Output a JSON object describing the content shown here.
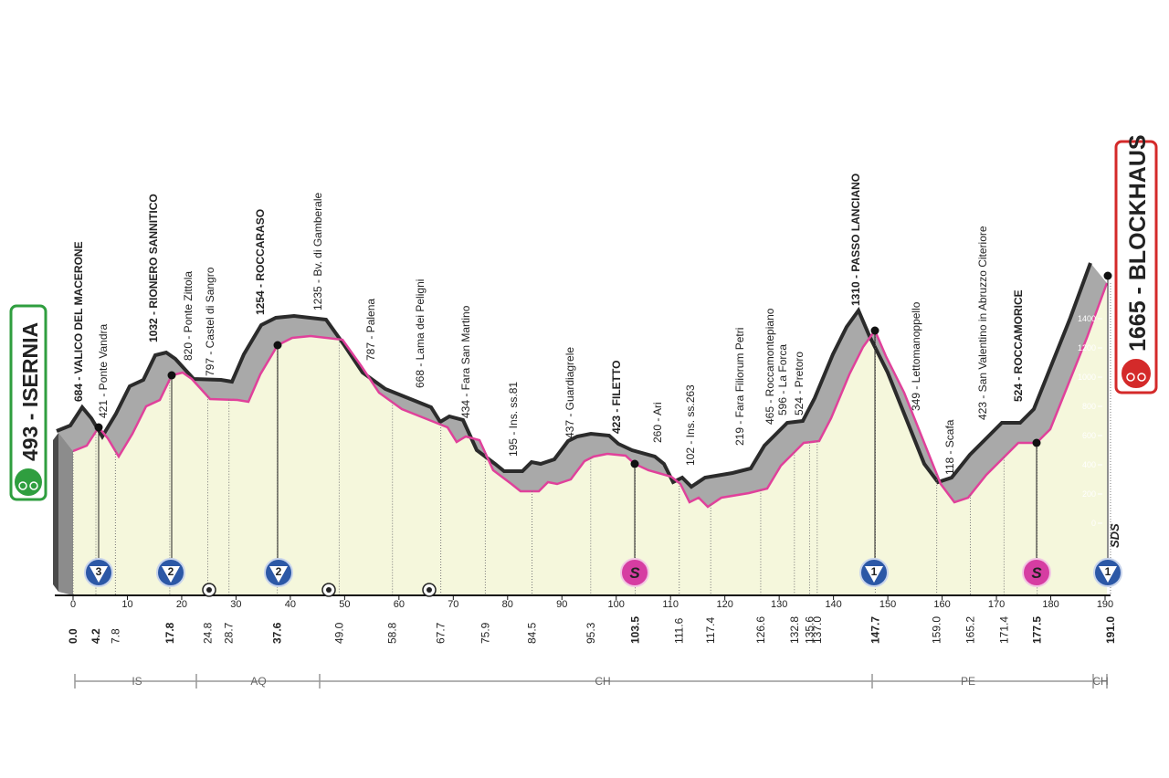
{
  "profile": {
    "start_label": "493 - ISERNIA",
    "finish_label": "1665 - BLOCKHAUS",
    "waypoints": [
      "684 - VALICO DEL MACERONE",
      "421 - Ponte Vandra",
      "1032 - RIONERO SANNITICO",
      "820 - Ponte Zittola",
      "797 - Castel di Sangro",
      "1254 - ROCCARASO",
      "1235 - Bv. di Gamberale",
      "787 - Palena",
      "668 - Lama dei Peligni",
      "434 - Fara San Martino",
      "195 - Ins. ss.81",
      "437 - Guardiagrele",
      "423 - FILETTO",
      "260 - Ari",
      "102 - Ins. ss.263",
      "219 - Fara Filiorum Petri",
      "465 - Roccamontepiano",
      "596 - La Forca",
      "524 - Pretoro",
      "1310 - PASSO LANCIANO",
      "349 - Lettomanoppello",
      "118 - Scafa",
      "423 - San Valentino in Abruzzo Citeriore",
      "524 - ROCCAMORICE"
    ],
    "km_points": [
      {
        "value": 0,
        "label": "0.0"
      },
      4.2,
      7.8,
      17.8,
      24.8,
      28.7,
      37.6,
      {
        "value": 49,
        "label": "49.0"
      },
      58.8,
      67.7,
      75.9,
      84.5,
      95.3,
      103.5,
      111.6,
      117.4,
      126.6,
      132.8,
      135.6,
      {
        "value": 137,
        "label": "137.0"
      },
      147.7,
      {
        "value": 159,
        "label": "159.0"
      },
      165.2,
      171.4,
      177.5,
      {
        "value": 191,
        "label": "191.0"
      }
    ],
    "distance_ticks": [
      0,
      10,
      20,
      30,
      40,
      50,
      60,
      70,
      80,
      90,
      100,
      110,
      120,
      130,
      140,
      150,
      160,
      170,
      180,
      190
    ],
    "altitude_ticks": [
      0,
      200,
      400,
      600,
      800,
      1000,
      1200,
      1400
    ],
    "regions": [
      "IS",
      "AQ",
      "CH",
      "PE",
      "CH"
    ],
    "climbs": [
      "3",
      "2",
      "2",
      "1",
      "1"
    ],
    "sprints": [
      "S",
      "S"
    ],
    "logo": "SDS"
  }
}
